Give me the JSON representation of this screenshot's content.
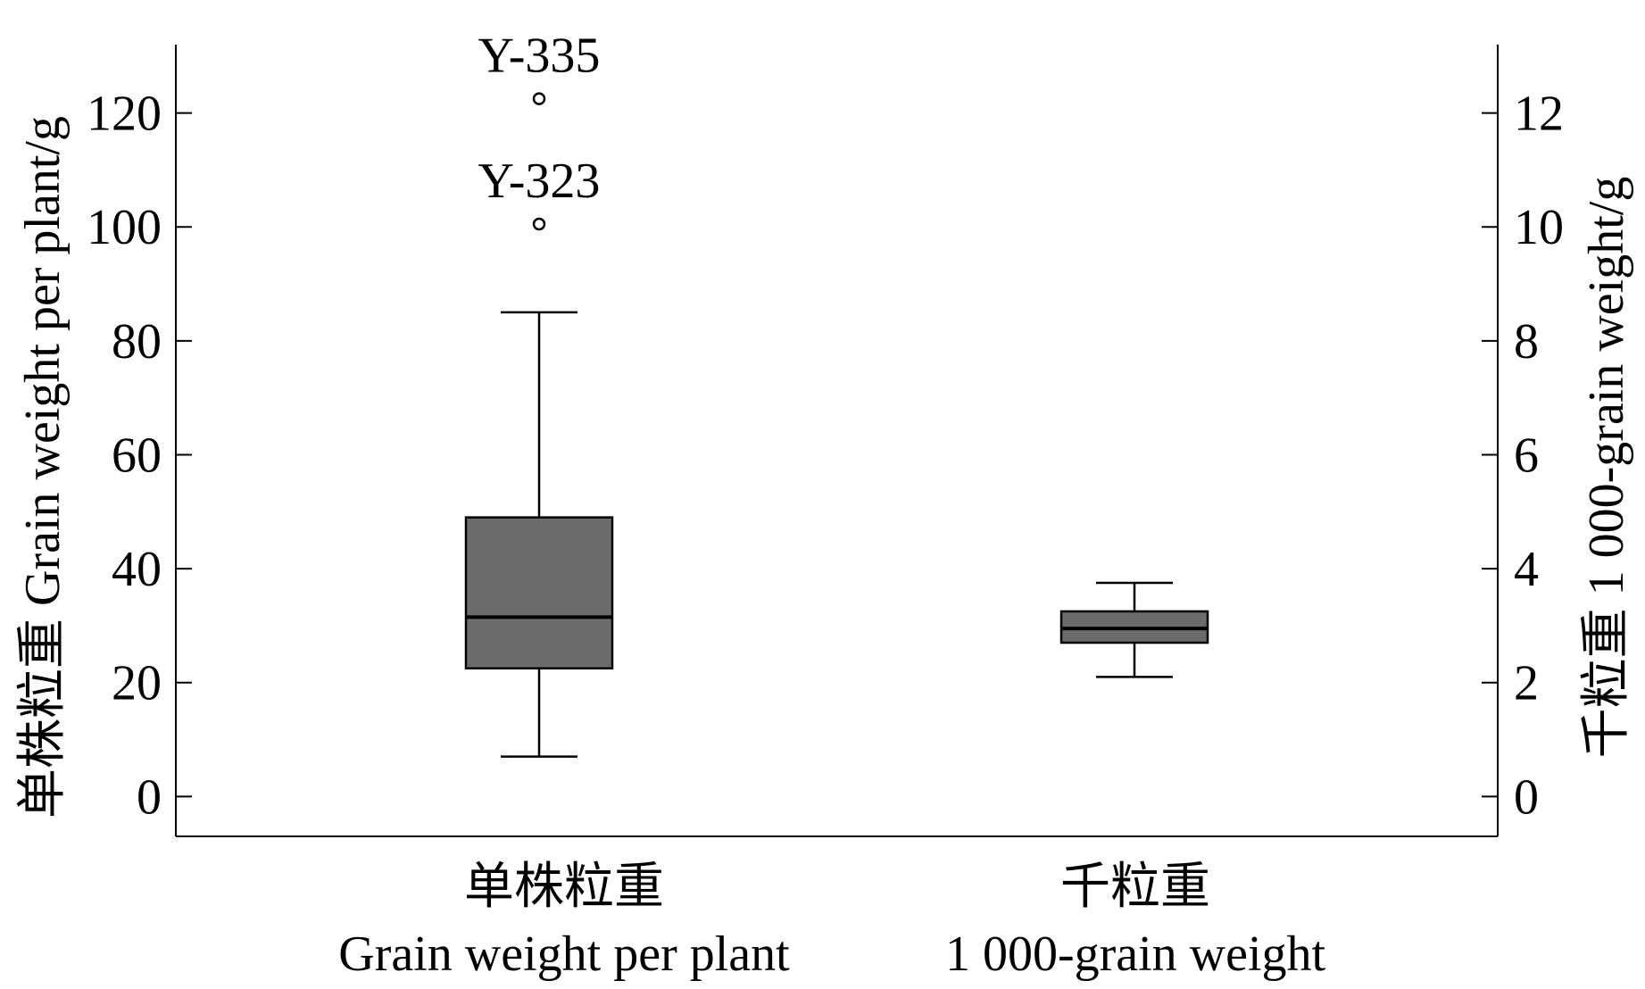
{
  "chart_data": {
    "type": "box",
    "categories": [
      {
        "label_cn": "单株粒重",
        "label_en": "Grain weight per plant",
        "axis": "left"
      },
      {
        "label_cn": "千粒重",
        "label_en": "1 000-grain weight",
        "axis": "right"
      }
    ],
    "left_axis": {
      "label": "单株粒重 Grain weight per plant/g",
      "ylim": [
        -7,
        132
      ],
      "ticks": [
        0,
        20,
        40,
        60,
        80,
        100,
        120
      ]
    },
    "right_axis": {
      "label": "千粒重 1 000-grain weight/g",
      "ylim": [
        -0.7,
        13.2
      ],
      "ticks": [
        0,
        2,
        4,
        6,
        8,
        10,
        12
      ]
    },
    "boxes": [
      {
        "category": "单株粒重",
        "whisker_low": 7,
        "q1": 22.5,
        "median": 31.5,
        "q3": 49,
        "whisker_high": 85,
        "outliers": [
          {
            "value": 100.5,
            "label": "Y-323"
          },
          {
            "value": 122.5,
            "label": "Y-335"
          }
        ]
      },
      {
        "category": "千粒重",
        "whisker_low": 2.1,
        "q1": 2.7,
        "median": 2.95,
        "q3": 3.25,
        "whisker_high": 3.75,
        "outliers": []
      }
    ],
    "box_color": "#6b6b6b",
    "grid": false
  }
}
